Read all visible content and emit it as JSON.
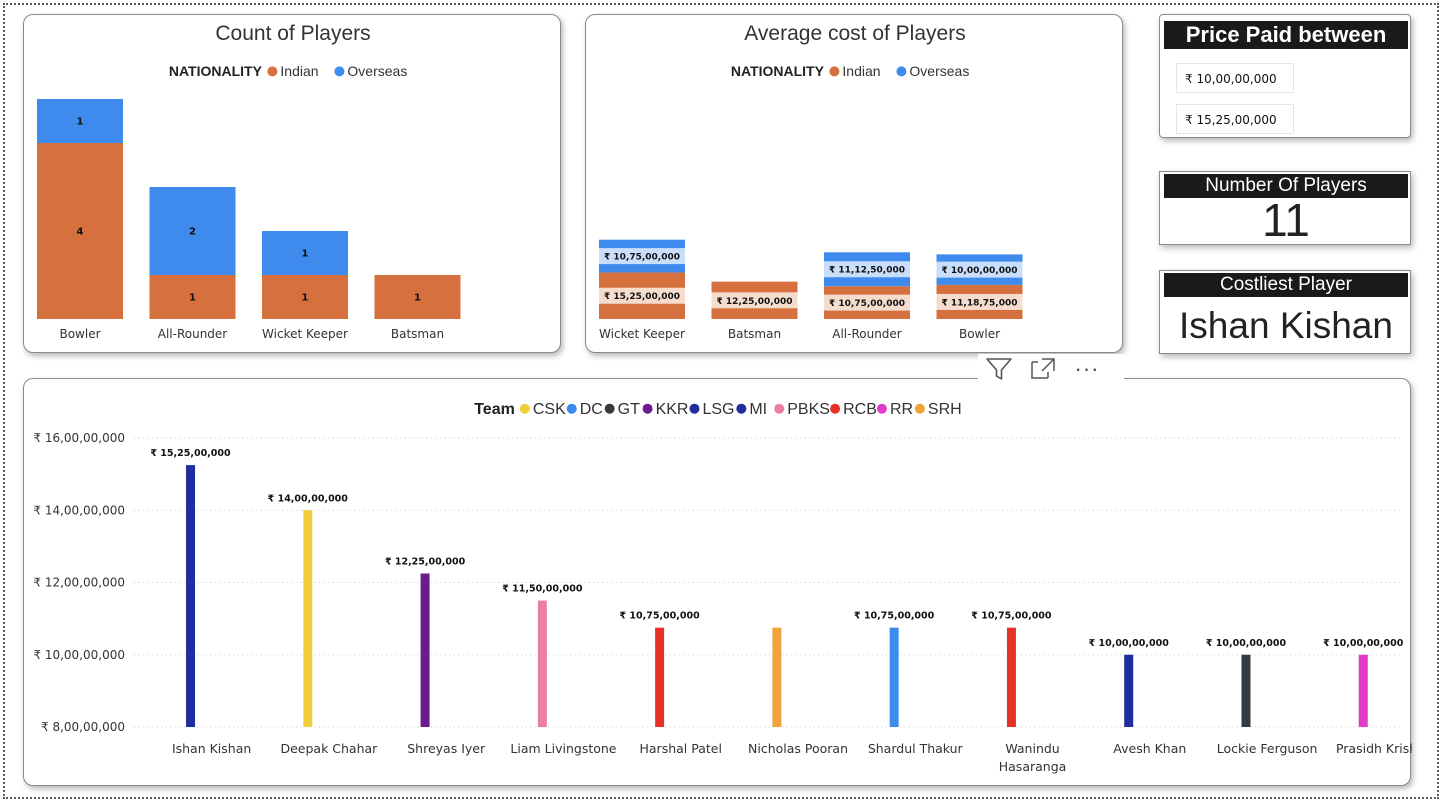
{
  "colors": {
    "indian": "#D6703F",
    "overseas": "#3F8BED",
    "gridline": "#d9d9d9",
    "teams": {
      "CSK": "#F2CD3A",
      "DC": "#3F8BED",
      "GT": "#333B41",
      "KKR": "#6A1B8C",
      "LSG": "#1F2D9E",
      "MI": "#1F2D9E",
      "PBKS": "#EB7EA8",
      "RCB": "#E53127",
      "RR": "#E23ACB",
      "SRH": "#F0A23B"
    }
  },
  "chart_data": [
    {
      "type": "bar",
      "stacked": true,
      "title": "Count of Players",
      "legend_title": "NATIONALITY",
      "categories": [
        "Bowler",
        "All-Rounder",
        "Wicket Keeper",
        "Batsman"
      ],
      "series": [
        {
          "name": "Indian",
          "values": [
            4,
            1,
            1,
            1
          ],
          "labels": [
            "4",
            "1",
            "1",
            "1"
          ]
        },
        {
          "name": "Overseas",
          "values": [
            1,
            2,
            1,
            0
          ],
          "labels": [
            "1",
            "2",
            "1",
            ""
          ]
        }
      ]
    },
    {
      "type": "bar",
      "stacked": true,
      "title": "Average cost of Players",
      "legend_title": "NATIONALITY",
      "categories": [
        "Wicket Keeper",
        "Batsman",
        "All-Rounder",
        "Bowler"
      ],
      "series": [
        {
          "name": "Indian",
          "values": [
            152500000,
            122500000,
            107500000,
            111875000
          ],
          "labels": [
            "₹ 15,25,00,000",
            "₹ 12,25,00,000",
            "₹ 10,75,00,000",
            "₹ 11,18,75,000"
          ]
        },
        {
          "name": "Overseas",
          "values": [
            107500000,
            0,
            111250000,
            100000000
          ],
          "labels": [
            "₹ 10,75,00,000",
            "",
            "₹ 11,12,50,000",
            "₹ 10,00,00,000"
          ]
        }
      ]
    },
    {
      "type": "bar",
      "title": "",
      "legend_title": "Team",
      "legend": [
        "CSK",
        "DC",
        "GT",
        "KKR",
        "LSG",
        "MI",
        "PBKS",
        "RCB",
        "RR",
        "SRH"
      ],
      "ylim": [
        80000000,
        160000000
      ],
      "ytick_values": [
        80000000,
        100000000,
        120000000,
        140000000,
        160000000
      ],
      "yticks": [
        "₹ 8,00,00,000",
        "₹ 10,00,00,000",
        "₹ 12,00,00,000",
        "₹ 14,00,00,000",
        "₹ 16,00,00,000"
      ],
      "grid": true,
      "groups": [
        {
          "name": "Ishan Kishan",
          "bars": [
            {
              "team": "MI",
              "value": 152500000,
              "label": "₹ 15,25,00,000"
            }
          ]
        },
        {
          "name": "Deepak Chahar",
          "bars": [
            {
              "team": "CSK",
              "value": 140000000,
              "label": "₹ 14,00,00,000"
            }
          ]
        },
        {
          "name": "Shreyas Iyer",
          "bars": [
            {
              "team": "KKR",
              "value": 122500000,
              "label": "₹ 12,25,00,000"
            }
          ]
        },
        {
          "name": "Liam Livingstone",
          "bars": [
            {
              "team": "PBKS",
              "value": 115000000,
              "label": "₹ 11,50,00,000"
            }
          ]
        },
        {
          "name": "Harshal Patel",
          "bars": [
            {
              "team": "RCB",
              "value": 107500000,
              "label": "₹ 10,75,00,000"
            }
          ]
        },
        {
          "name": "Nicholas Pooran",
          "bars": [
            {
              "team": "SRH",
              "value": 107500000,
              "label": ""
            }
          ]
        },
        {
          "name": "Shardul Thakur",
          "bars": [
            {
              "team": "DC",
              "value": 107500000,
              "label": "₹ 10,75,00,000"
            }
          ]
        },
        {
          "name": "Wanindu Hasaranga",
          "bars": [
            {
              "team": "RCB",
              "value": 107500000,
              "label": "₹ 10,75,00,000"
            }
          ]
        },
        {
          "name": "Avesh Khan",
          "bars": [
            {
              "team": "LSG",
              "value": 100000000,
              "label": "₹ 10,00,00,000"
            }
          ]
        },
        {
          "name": "Lockie Ferguson",
          "bars": [
            {
              "team": "GT",
              "value": 100000000,
              "label": "₹ 10,00,00,000"
            }
          ]
        },
        {
          "name": "Prasidh Krishna",
          "bars": [
            {
              "team": "RR",
              "value": 100000000,
              "label": "₹ 10,00,00,000"
            }
          ]
        }
      ]
    }
  ],
  "price_slicer": {
    "title": "Price Paid between",
    "min": "₹ 10,00,00,000",
    "max": "₹ 15,25,00,000"
  },
  "kpi_players": {
    "title": "Number Of Players",
    "value": "11"
  },
  "kpi_costliest": {
    "title": "Costliest Player",
    "value": "Ishan Kishan"
  },
  "visual_header": {
    "icons": [
      "filter-icon",
      "focus-mode-icon",
      "more-options-icon"
    ],
    "more_glyph": "···"
  }
}
